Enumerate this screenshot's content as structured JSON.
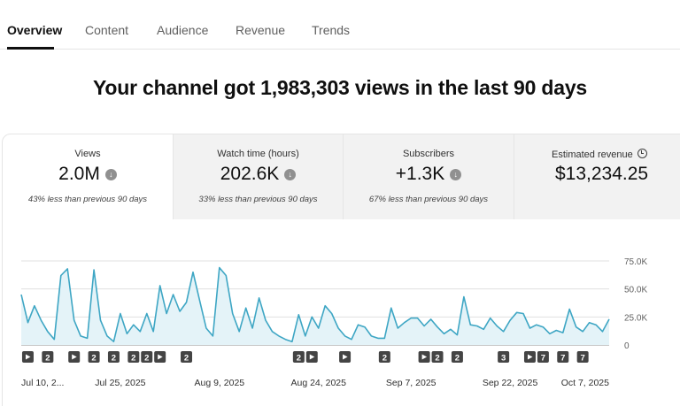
{
  "tabs": [
    {
      "label": "Overview",
      "active": true
    },
    {
      "label": "Content",
      "active": false
    },
    {
      "label": "Audience",
      "active": false
    },
    {
      "label": "Revenue",
      "active": false
    },
    {
      "label": "Trends",
      "active": false
    }
  ],
  "headline": "Your channel got 1,983,303 views in the last 90 days",
  "metrics": [
    {
      "label": "Views",
      "value": "2.0M",
      "comparison": "43% less than previous 90 days",
      "icon": "down-arrow-icon"
    },
    {
      "label": "Watch time (hours)",
      "value": "202.6K",
      "comparison": "33% less than previous 90 days",
      "icon": "down-arrow-icon"
    },
    {
      "label": "Subscribers",
      "value": "+1.3K",
      "comparison": "67% less than previous 90 days",
      "icon": "down-arrow-icon"
    },
    {
      "label": "Estimated revenue",
      "value": "$13,234.25",
      "comparison": "",
      "icon": "clock-icon"
    }
  ],
  "chart_data": {
    "type": "area",
    "title": "",
    "xlabel": "",
    "ylabel": "",
    "ylim": [
      0,
      75000
    ],
    "y_ticks": [
      "75.0K",
      "50.0K",
      "25.0K",
      "0"
    ],
    "y_tick_values": [
      75000,
      50000,
      25000,
      0
    ],
    "grid": true,
    "color": "#3ea6c4",
    "fill": "#e4f3f8",
    "x_tick_labels": [
      "Jul 10, 2...",
      "Jul 25, 2025",
      "Aug 9, 2025",
      "Aug 24, 2025",
      "Sep 7, 2025",
      "Sep 22, 2025",
      "Oct 7, 2025"
    ],
    "x_tick_days": [
      0,
      15,
      30,
      45,
      59,
      74,
      89
    ],
    "series": [
      {
        "values": [
          45000,
          20000,
          35000,
          22000,
          12000,
          5000,
          62000,
          68000,
          22000,
          8000,
          6000,
          67000,
          22000,
          8000,
          3000,
          28000,
          10000,
          18000,
          12000,
          28000,
          12000,
          53000,
          28000,
          45000,
          30000,
          38000,
          65000,
          40000,
          15000,
          8000,
          69000,
          62000,
          28000,
          12000,
          33000,
          15000,
          42000,
          22000,
          12000,
          8000,
          5000,
          3000,
          27000,
          8000,
          25000,
          15000,
          35000,
          28000,
          15000,
          8000,
          5000,
          18000,
          16000,
          8000,
          6000,
          6000,
          33000,
          15000,
          20000,
          24000,
          24000,
          17000,
          23000,
          16000,
          10000,
          14000,
          9000,
          43000,
          18000,
          17000,
          14000,
          24000,
          17000,
          12000,
          22000,
          29000,
          28000,
          15000,
          18000,
          16000,
          10000,
          13000,
          11000,
          32000,
          16000,
          12000,
          20000,
          18000,
          12000,
          23000
        ]
      }
    ],
    "markers": [
      {
        "day": 1,
        "kind": "video"
      },
      {
        "day": 4,
        "kind": "count",
        "label": "2"
      },
      {
        "day": 8,
        "kind": "video"
      },
      {
        "day": 11,
        "kind": "count",
        "label": "2"
      },
      {
        "day": 14,
        "kind": "count",
        "label": "2"
      },
      {
        "day": 17,
        "kind": "count",
        "label": "2"
      },
      {
        "day": 19,
        "kind": "count",
        "label": "2"
      },
      {
        "day": 21,
        "kind": "video"
      },
      {
        "day": 25,
        "kind": "count",
        "label": "2"
      },
      {
        "day": 42,
        "kind": "count",
        "label": "2"
      },
      {
        "day": 44,
        "kind": "video"
      },
      {
        "day": 49,
        "kind": "video"
      },
      {
        "day": 55,
        "kind": "count",
        "label": "2"
      },
      {
        "day": 61,
        "kind": "video"
      },
      {
        "day": 63,
        "kind": "count",
        "label": "2"
      },
      {
        "day": 66,
        "kind": "count",
        "label": "2"
      },
      {
        "day": 73,
        "kind": "count",
        "label": "3"
      },
      {
        "day": 77,
        "kind": "video"
      },
      {
        "day": 79,
        "kind": "count",
        "label": "7"
      },
      {
        "day": 82,
        "kind": "count",
        "label": "7"
      },
      {
        "day": 85,
        "kind": "count",
        "label": "7"
      }
    ]
  }
}
